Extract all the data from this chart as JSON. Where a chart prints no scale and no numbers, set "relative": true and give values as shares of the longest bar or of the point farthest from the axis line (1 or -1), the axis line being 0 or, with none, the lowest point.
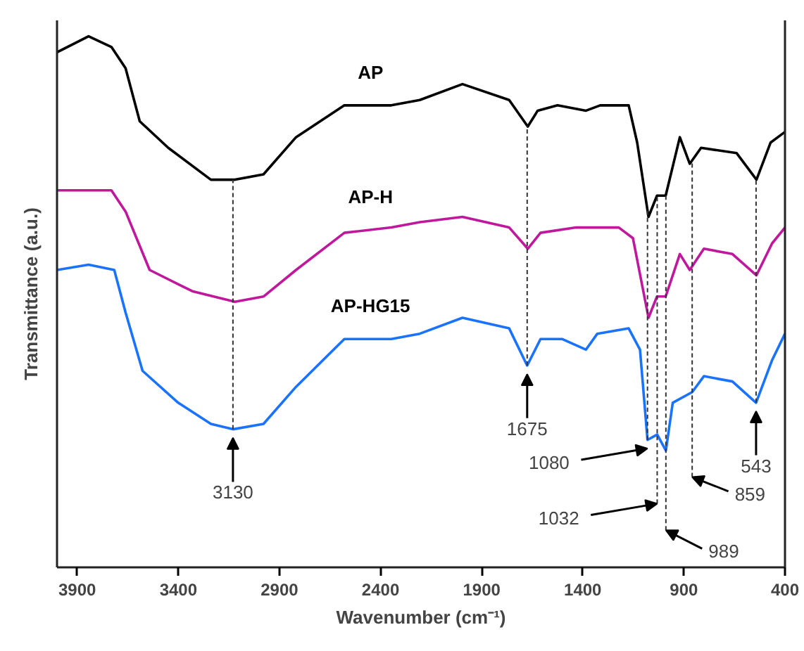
{
  "chart_data": {
    "type": "line",
    "relative": true,
    "xlabel": "Wavenumber (cm⁻¹)",
    "ylabel": "Transmittance (a.u.)",
    "xlim": [
      4000,
      400
    ],
    "xticks": [
      3900,
      3400,
      2900,
      2400,
      1900,
      1400,
      900,
      400
    ],
    "grid": false,
    "legend": false,
    "series": [
      {
        "name": "AP",
        "color": "#000000",
        "x": [
          4000,
          3844,
          3731,
          3661,
          3591,
          3450,
          3239,
          3120,
          2979,
          2818,
          2579,
          2347,
          2206,
          1995,
          1764,
          1672,
          1623,
          1525,
          1384,
          1314,
          1173,
          1131,
          1075,
          1033,
          990,
          920,
          871,
          815,
          639,
          541,
          471,
          400
        ],
        "values": [
          0.97,
          1.0,
          0.98,
          0.94,
          0.84,
          0.79,
          0.73,
          0.73,
          0.74,
          0.81,
          0.87,
          0.87,
          0.88,
          0.91,
          0.88,
          0.83,
          0.86,
          0.87,
          0.86,
          0.87,
          0.87,
          0.8,
          0.66,
          0.7,
          0.7,
          0.81,
          0.76,
          0.79,
          0.78,
          0.73,
          0.8,
          0.82
        ]
      },
      {
        "name": "AP-H",
        "color": "#c0189c",
        "x": [
          4000,
          3844,
          3731,
          3661,
          3542,
          3331,
          3120,
          2979,
          2818,
          2579,
          2347,
          2206,
          1995,
          1764,
          1672,
          1609,
          1433,
          1222,
          1152,
          1075,
          1033,
          990,
          920,
          871,
          801,
          660,
          541,
          464,
          400
        ],
        "values": [
          0.71,
          0.71,
          0.71,
          0.67,
          0.56,
          0.52,
          0.5,
          0.51,
          0.56,
          0.63,
          0.64,
          0.65,
          0.66,
          0.64,
          0.6,
          0.63,
          0.64,
          0.64,
          0.62,
          0.47,
          0.51,
          0.51,
          0.59,
          0.56,
          0.6,
          0.59,
          0.55,
          0.61,
          0.64
        ]
      },
      {
        "name": "AP-HG15",
        "color": "#1a73ff",
        "x": [
          4000,
          3844,
          3717,
          3661,
          3577,
          3401,
          3239,
          3130,
          2979,
          2818,
          2579,
          2347,
          2206,
          1995,
          1764,
          1675,
          1609,
          1503,
          1384,
          1328,
          1173,
          1117,
          1080,
          1032,
          989,
          955,
          859,
          801,
          660,
          543,
          464,
          400
        ],
        "values": [
          0.56,
          0.57,
          0.56,
          0.48,
          0.37,
          0.31,
          0.27,
          0.26,
          0.27,
          0.34,
          0.43,
          0.43,
          0.44,
          0.47,
          0.45,
          0.38,
          0.43,
          0.43,
          0.41,
          0.44,
          0.45,
          0.41,
          0.24,
          0.25,
          0.22,
          0.31,
          0.33,
          0.36,
          0.35,
          0.31,
          0.39,
          0.44
        ]
      }
    ],
    "ref_lines": [
      {
        "axis": "x",
        "value": 3130,
        "line_style": "dashed",
        "color": "#333333"
      },
      {
        "axis": "x",
        "value": 1675,
        "line_style": "dashed",
        "color": "#333333"
      },
      {
        "axis": "x",
        "value": 1080,
        "line_style": "dashed",
        "color": "#333333"
      },
      {
        "axis": "x",
        "value": 1032,
        "line_style": "dashed",
        "color": "#333333"
      },
      {
        "axis": "x",
        "value": 989,
        "line_style": "dashed",
        "color": "#333333"
      },
      {
        "axis": "x",
        "value": 859,
        "line_style": "dashed",
        "color": "#333333"
      },
      {
        "axis": "x",
        "value": 543,
        "line_style": "dashed",
        "color": "#333333"
      }
    ],
    "annotations": [
      {
        "text": "3130",
        "x": 3130,
        "y": 0.26
      },
      {
        "text": "1675",
        "x": 1675,
        "y": 0.38
      },
      {
        "text": "1080",
        "x": 1080,
        "y": 0.24
      },
      {
        "text": "1032",
        "x": 1032,
        "y": 0.12
      },
      {
        "text": "989",
        "x": 989,
        "y": 0.07
      },
      {
        "text": "859",
        "x": 859,
        "y": 0.17
      },
      {
        "text": "543",
        "x": 543,
        "y": 0.31
      }
    ]
  }
}
